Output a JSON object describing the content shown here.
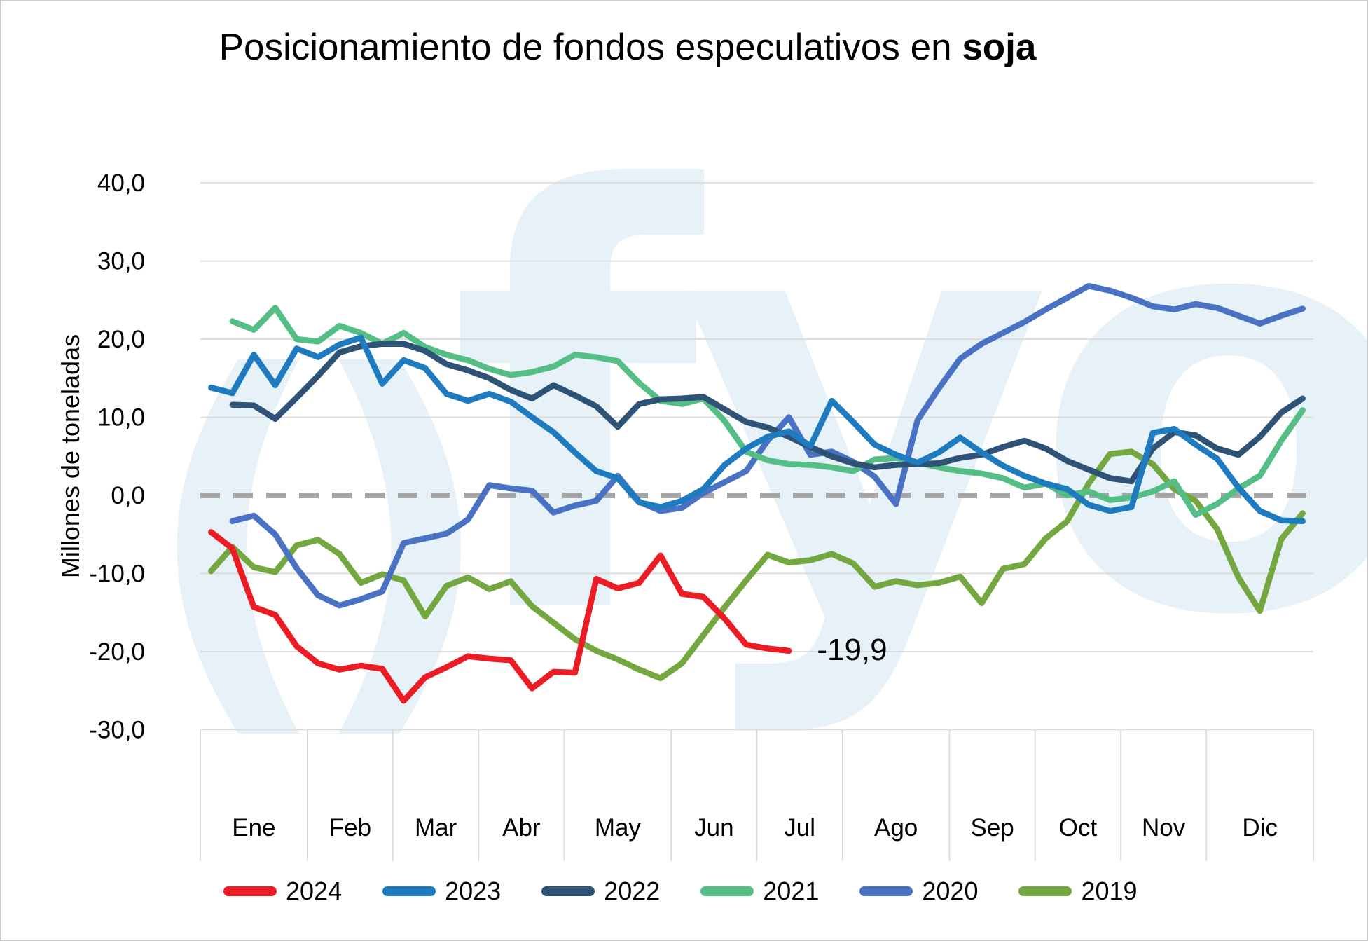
{
  "title": {
    "regular": "Posicionamiento de fondos especulativos en ",
    "bold": "soja"
  },
  "y_axis": {
    "label": "Millones de toneladas",
    "ticks": [
      "40,0",
      "30,0",
      "20,0",
      "10,0",
      "0,0",
      "-10,0",
      "-20,0",
      "-30,0"
    ],
    "tick_values": [
      40,
      30,
      20,
      10,
      0,
      -10,
      -20,
      -30
    ]
  },
  "x_axis": {
    "months": [
      "Ene",
      "Feb",
      "Mar",
      "Abr",
      "May",
      "Jun",
      "Jul",
      "Ago",
      "Sep",
      "Oct",
      "Nov",
      "Dic"
    ],
    "weeks_per_month": [
      5,
      4,
      4,
      4,
      5,
      4,
      4,
      5,
      4,
      4,
      4,
      5
    ]
  },
  "annotation": {
    "text": "-19,9",
    "week": 28,
    "value": -19.9
  },
  "watermark": {
    "left_text": "()",
    "right_text": "fyo",
    "color": "#e7f1f8"
  },
  "colors": {
    "grid": "#d9d9d9",
    "zero_line": "#a6a6a6",
    "text": "#000000"
  },
  "legend": {
    "items": [
      {
        "label": "2024",
        "color": "#ec1c24"
      },
      {
        "label": "2023",
        "color": "#1f7bc0"
      },
      {
        "label": "2022",
        "color": "#2e5377"
      },
      {
        "label": "2021",
        "color": "#54be84"
      },
      {
        "label": "2020",
        "color": "#4a72c4"
      },
      {
        "label": "2019",
        "color": "#74a73f"
      }
    ]
  },
  "chart_data": {
    "type": "line",
    "title": "Posicionamiento de fondos especulativos en soja",
    "xlabel": "",
    "ylabel": "Millones de toneladas",
    "x_unit": "semana (52 semanas, agrupadas por mes)",
    "ylim": [
      -30,
      40
    ],
    "grid": true,
    "legend_position": "bottom",
    "zero_line": {
      "style": "dashed",
      "color": "#a6a6a6"
    },
    "series": [
      {
        "name": "2024",
        "color": "#ec1c24",
        "values": [
          -4.7,
          -6.8,
          -14.3,
          -15.3,
          -19.3,
          -21.5,
          -22.3,
          -21.8,
          -22.2,
          -26.3,
          -23.3,
          -22.0,
          -20.6,
          -20.9,
          -21.1,
          -24.7,
          -22.6,
          -22.7,
          -10.7,
          -11.9,
          -11.2,
          -7.7,
          -12.6,
          -13.0,
          -15.8,
          -19.1,
          -19.6,
          -19.9,
          null,
          null,
          null,
          null,
          null,
          null,
          null,
          null,
          null,
          null,
          null,
          null,
          null,
          null,
          null,
          null,
          null,
          null,
          null,
          null,
          null,
          null,
          null,
          null
        ]
      },
      {
        "name": "2023",
        "color": "#1f7bc0",
        "values": [
          13.8,
          13.1,
          18.0,
          14.1,
          18.8,
          17.7,
          19.3,
          20.2,
          14.3,
          17.3,
          16.3,
          13.0,
          12.1,
          13.0,
          12.0,
          10.0,
          8.1,
          5.5,
          3.1,
          2.2,
          -0.9,
          -1.5,
          -0.7,
          0.8,
          3.9,
          6.0,
          7.5,
          8.2,
          6.3,
          12.1,
          9.4,
          6.5,
          5.2,
          4.2,
          5.5,
          7.4,
          5.5,
          3.8,
          2.5,
          1.5,
          0.8,
          -1.2,
          -2.0,
          -1.5,
          8.0,
          8.5,
          6.5,
          4.7,
          1.0,
          -2.0,
          -3.2,
          -3.3
        ]
      },
      {
        "name": "2022",
        "color": "#2e5377",
        "values": [
          null,
          11.6,
          11.5,
          9.8,
          12.5,
          15.3,
          18.3,
          19.1,
          19.4,
          19.4,
          18.5,
          16.8,
          16.0,
          15.0,
          13.5,
          12.4,
          14.1,
          12.8,
          11.4,
          8.8,
          11.7,
          12.3,
          12.4,
          12.6,
          11.0,
          9.4,
          8.7,
          7.5,
          6.2,
          5.0,
          4.1,
          3.6,
          3.9,
          4.0,
          4.1,
          4.8,
          5.2,
          6.2,
          7.0,
          6.0,
          4.4,
          3.3,
          2.2,
          1.8,
          6.0,
          8.1,
          7.7,
          6.0,
          5.2,
          7.5,
          10.6,
          12.4
        ]
      },
      {
        "name": "2021",
        "color": "#54be84",
        "values": [
          null,
          22.3,
          21.2,
          24.0,
          20.0,
          19.7,
          21.7,
          20.8,
          19.4,
          20.8,
          19.0,
          18.0,
          17.3,
          16.2,
          15.4,
          15.8,
          16.5,
          18.0,
          17.7,
          17.2,
          14.4,
          12.1,
          11.7,
          12.4,
          9.5,
          5.6,
          4.5,
          4.0,
          3.9,
          3.6,
          3.1,
          4.6,
          4.8,
          4.2,
          3.6,
          3.1,
          2.8,
          2.2,
          1.0,
          1.5,
          0.0,
          0.5,
          -0.6,
          -0.3,
          0.5,
          1.8,
          -2.5,
          -1.1,
          0.9,
          2.5,
          7.0,
          10.9
        ]
      },
      {
        "name": "2020",
        "color": "#4a72c4",
        "values": [
          null,
          -3.3,
          -2.6,
          -5.0,
          -9.3,
          -12.8,
          -14.1,
          -13.3,
          -12.3,
          -6.1,
          -5.5,
          -4.9,
          -3.1,
          1.3,
          0.9,
          0.6,
          -2.2,
          -1.3,
          -0.7,
          2.5,
          -0.8,
          -2.0,
          -1.6,
          0.3,
          1.7,
          3.1,
          7.0,
          10.0,
          5.2,
          5.6,
          4.3,
          2.4,
          -1.1,
          9.6,
          13.7,
          17.5,
          19.4,
          20.8,
          22.2,
          23.8,
          25.3,
          26.8,
          26.2,
          25.3,
          24.2,
          23.8,
          24.5,
          24.0,
          23.0,
          22.0,
          23.0,
          23.9
        ]
      },
      {
        "name": "2019",
        "color": "#74a73f",
        "values": [
          -9.7,
          -6.6,
          -9.2,
          -9.8,
          -6.4,
          -5.7,
          -7.5,
          -11.2,
          -10.1,
          -10.9,
          -15.5,
          -11.6,
          -10.5,
          -12.0,
          -11.0,
          -14.2,
          -16.3,
          -18.4,
          -19.9,
          -21.0,
          -22.3,
          -23.4,
          -21.5,
          -17.9,
          -14.3,
          -10.9,
          -7.6,
          -8.6,
          -8.3,
          -7.5,
          -8.7,
          -11.7,
          -11.0,
          -11.5,
          -11.2,
          -10.4,
          -13.8,
          -9.4,
          -8.8,
          -5.5,
          -3.3,
          1.5,
          5.3,
          5.6,
          4.0,
          0.8,
          -0.7,
          -4.3,
          -10.5,
          -14.8,
          -5.6,
          -2.3
        ]
      }
    ]
  }
}
